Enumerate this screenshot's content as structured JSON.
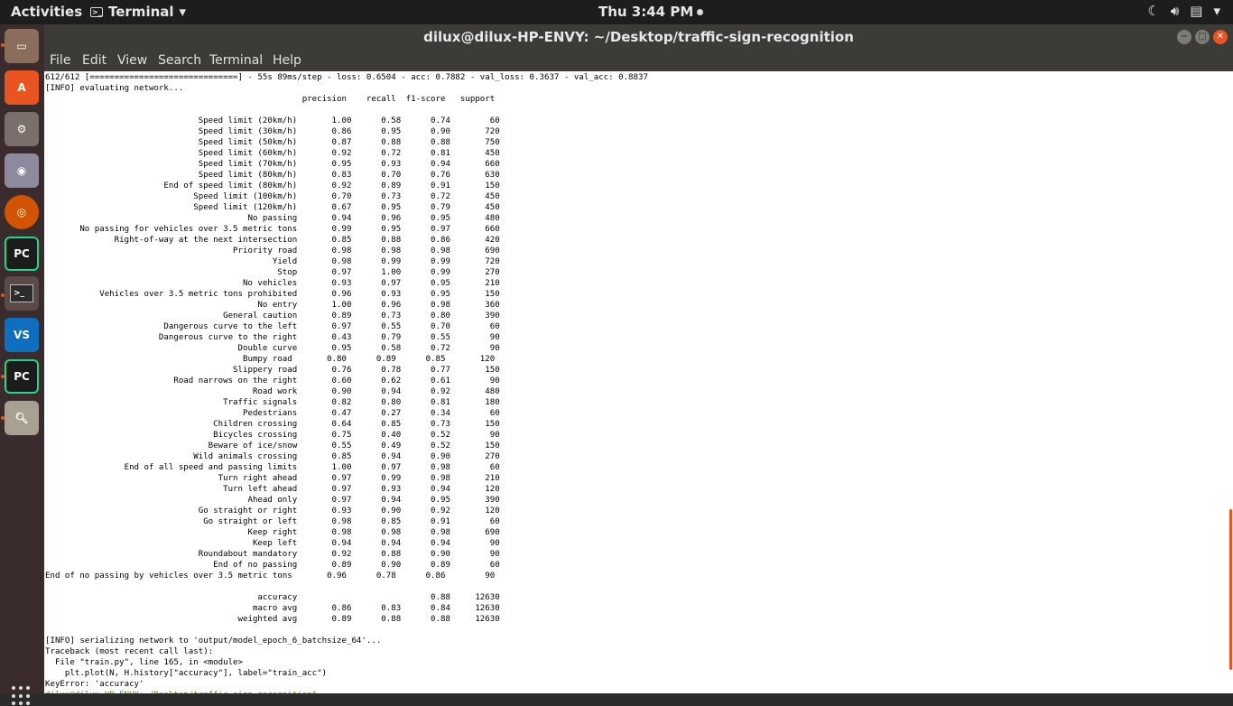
{
  "topbar": {
    "activities": "Activities",
    "app_name": "Terminal",
    "app_arrow": "▾",
    "clock": "Thu  3:44 PM",
    "tray_icons": [
      "night-mode-icon",
      "volume-icon",
      "clipboard-icon",
      "system-menu-icon"
    ]
  },
  "window": {
    "title": "dilux@dilux-HP-ENVY: ~/Desktop/traffic-sign-recognition",
    "menu": [
      "File",
      "Edit",
      "View",
      "Search",
      "Terminal",
      "Help"
    ]
  },
  "dock": {
    "items": [
      "files-icon",
      "software-center-icon",
      "settings-icon",
      "screenshot-icon",
      "firefox-icon",
      "pycharm-icon",
      "terminal-icon",
      "vscode-icon",
      "pycharm-2-icon",
      "image-viewer-icon"
    ]
  },
  "terminal": {
    "lines": [
      "612/612 [==============================] - 55s 89ms/step - loss: 0.6504 - acc: 0.7882 - val_loss: 0.3637 - val_acc: 0.8837",
      "[INFO] evaluating network...",
      "                                                    precision    recall  f1-score   support",
      "",
      "                               Speed limit (20km/h)       1.00      0.58      0.74        60",
      "                               Speed limit (30km/h)       0.86      0.95      0.90       720",
      "                               Speed limit (50km/h)       0.87      0.88      0.88       750",
      "                               Speed limit (60km/h)       0.92      0.72      0.81       450",
      "                               Speed limit (70km/h)       0.95      0.93      0.94       660",
      "                               Speed limit (80km/h)       0.83      0.70      0.76       630",
      "                        End of speed limit (80km/h)       0.92      0.89      0.91       150",
      "                              Speed limit (100km/h)       0.70      0.73      0.72       450",
      "                              Speed limit (120km/h)       0.67      0.95      0.79       450",
      "                                         No passing       0.94      0.96      0.95       480",
      "       No passing for vehicles over 3.5 metric tons       0.99      0.95      0.97       660",
      "              Right-of-way at the next intersection       0.85      0.88      0.86       420",
      "                                      Priority road       0.98      0.98      0.98       690",
      "                                              Yield       0.98      0.99      0.99       720",
      "                                               Stop       0.97      1.00      0.99       270",
      "                                        No vehicles       0.93      0.97      0.95       210",
      "           Vehicles over 3.5 metric tons prohibited       0.96      0.93      0.95       150",
      "                                           No entry       1.00      0.96      0.98       360",
      "                                    General caution       0.89      0.73      0.80       390",
      "                        Dangerous curve to the left       0.97      0.55      0.70        60",
      "                       Dangerous curve to the right       0.43      0.79      0.55        90",
      "                                       Double curve       0.95      0.58      0.72        90",
      "                                        Bumpy road       0.80      0.89      0.85       120",
      "                                      Slippery road       0.76      0.78      0.77       150",
      "                          Road narrows on the right       0.60      0.62      0.61        90",
      "                                          Road work       0.90      0.94      0.92       480",
      "                                    Traffic signals       0.82      0.80      0.81       180",
      "                                        Pedestrians       0.47      0.27      0.34        60",
      "                                  Children crossing       0.64      0.85      0.73       150",
      "                                  Bicycles crossing       0.75      0.40      0.52        90",
      "                                 Beware of ice/snow       0.55      0.49      0.52       150",
      "                              Wild animals crossing       0.85      0.94      0.90       270",
      "                End of all speed and passing limits       1.00      0.97      0.98        60",
      "                                   Turn right ahead       0.97      0.99      0.98       210",
      "                                    Turn left ahead       0.97      0.93      0.94       120",
      "                                         Ahead only       0.97      0.94      0.95       390",
      "                               Go straight or right       0.93      0.90      0.92       120",
      "                                Go straight or left       0.98      0.85      0.91        60",
      "                                         Keep right       0.98      0.98      0.98       690",
      "                                          Keep left       0.94      0.94      0.94        90",
      "                               Roundabout mandatory       0.92      0.88      0.90        90",
      "                                  End of no passing       0.89      0.90      0.89        60",
      "End of no passing by vehicles over 3.5 metric tons       0.96      0.78      0.86        90",
      "",
      "                                           accuracy                           0.88     12630",
      "                                          macro avg       0.86      0.83      0.84     12630",
      "                                       weighted avg       0.89      0.88      0.88     12630",
      "",
      "[INFO] serializing network to 'output/model_epoch_6_batchsize_64'...",
      "Traceback (most recent call last):",
      "  File \"train.py\", line 165, in <module>",
      "    plt.plot(N, H.history[\"accuracy\"], label=\"train_acc\")",
      "KeyError: 'accuracy'"
    ],
    "partial_prompt": "dilux@dilux-HP-ENVY:~/Desktop/traffic-sign-recognition$"
  }
}
